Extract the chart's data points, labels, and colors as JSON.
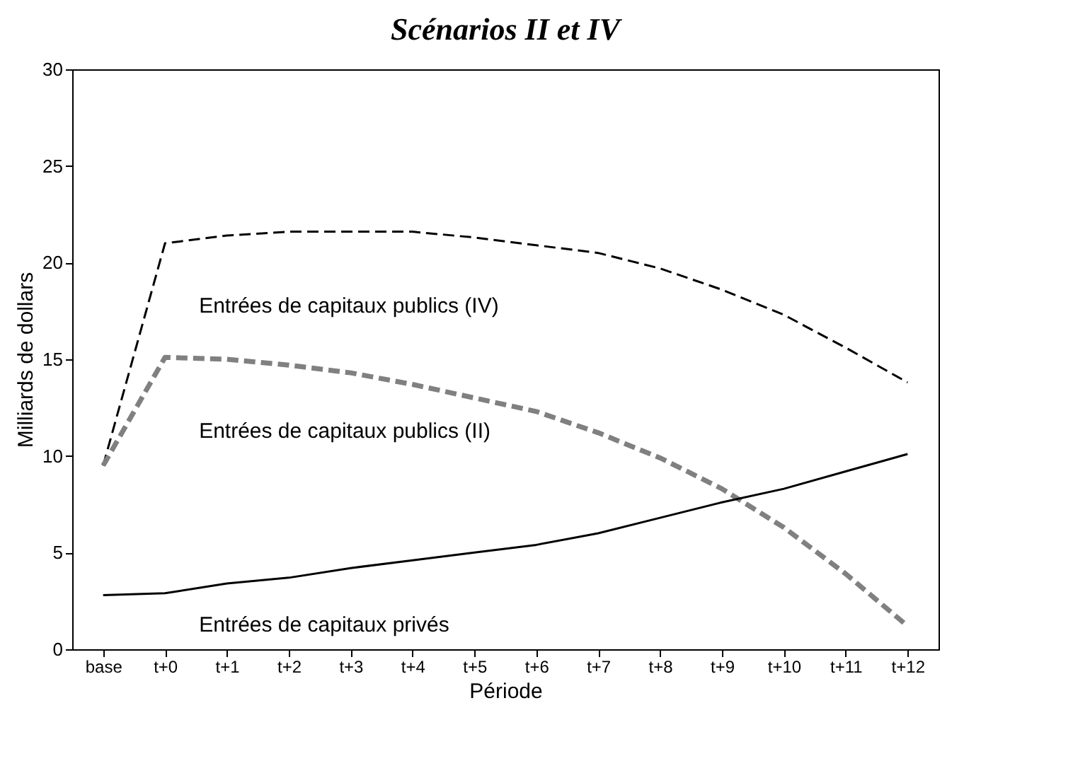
{
  "chart_data": {
    "type": "line",
    "title": "Scénarios II et IV",
    "xlabel": "Période",
    "ylabel": "Milliards de dollars",
    "categories": [
      "base",
      "t+0",
      "t+1",
      "t+2",
      "t+3",
      "t+4",
      "t+5",
      "t+6",
      "t+7",
      "t+8",
      "t+9",
      "t+10",
      "t+11",
      "t+12"
    ],
    "series": [
      {
        "name": "Entrées de capitaux publics (IV)",
        "color": "#000000",
        "line_style": "dashed",
        "values": [
          9.5,
          21.0,
          21.4,
          21.6,
          21.6,
          21.6,
          21.3,
          20.9,
          20.5,
          19.7,
          18.6,
          17.3,
          15.6,
          13.8
        ]
      },
      {
        "name": "Entrées de capitaux publics (II)",
        "color": "#808080",
        "line_style": "dashed",
        "values": [
          9.5,
          15.1,
          15.0,
          14.7,
          14.3,
          13.7,
          13.0,
          12.3,
          11.2,
          9.9,
          8.3,
          6.3,
          3.9,
          1.2
        ]
      },
      {
        "name": "Entrées de capitaux privés",
        "color": "#000000",
        "line_style": "solid",
        "values": [
          2.8,
          2.9,
          3.4,
          3.7,
          4.2,
          4.6,
          5.0,
          5.4,
          6.0,
          6.8,
          7.6,
          8.3,
          9.2,
          10.1
        ]
      }
    ],
    "ylim": [
      0,
      30
    ],
    "yticks": [
      0,
      5,
      10,
      15,
      20,
      25,
      30
    ],
    "grid": false,
    "legend": false,
    "marker": "none"
  }
}
